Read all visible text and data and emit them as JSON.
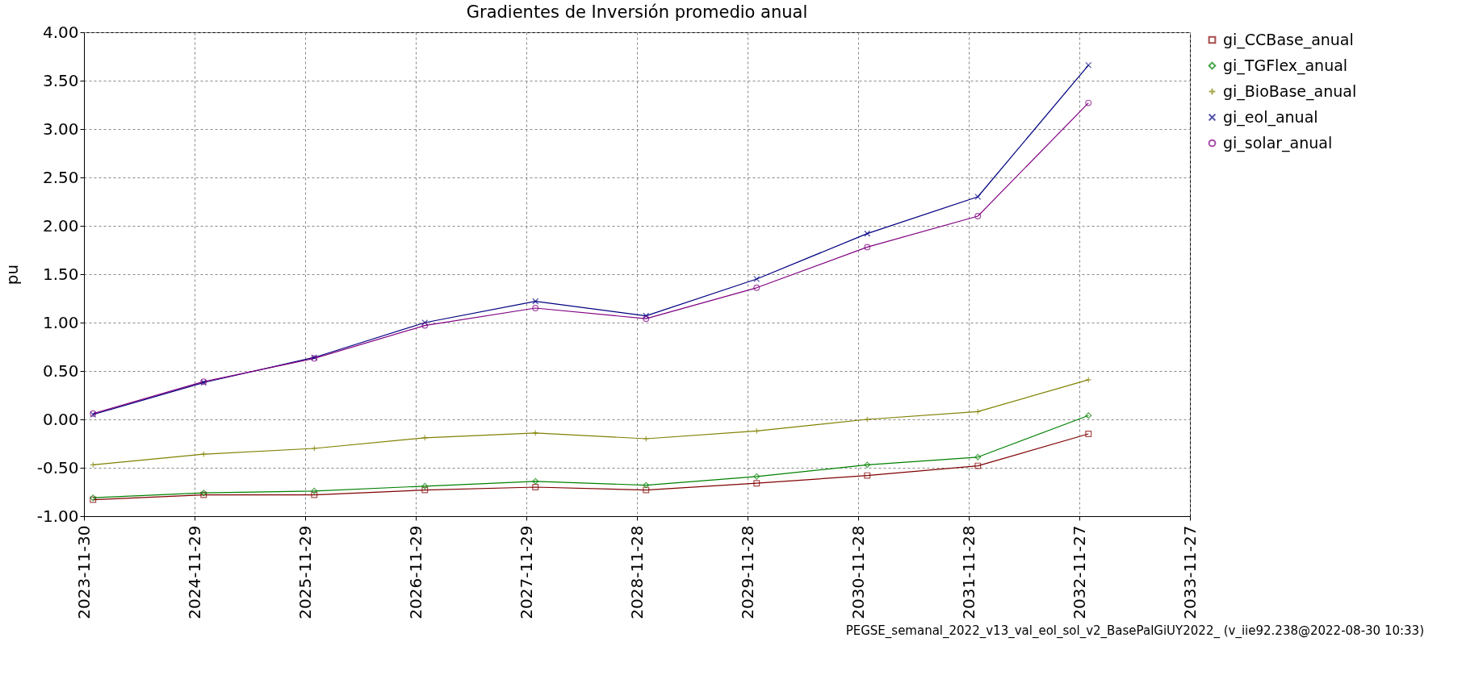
{
  "chart_data": {
    "type": "line",
    "title": "Gradientes de Inversión promedio anual",
    "ylabel": "pu",
    "x": [
      "2023-12-30",
      "2024-12-29",
      "2025-12-29",
      "2026-12-29",
      "2027-12-29",
      "2028-12-28",
      "2029-12-28",
      "2030-12-28",
      "2031-12-28",
      "2032-12-27"
    ],
    "xlim": [
      "2023-11-30",
      "2033-11-27"
    ],
    "xticks": [
      {
        "value": "2023-11-30",
        "label": "2023-11-30"
      },
      {
        "value": "2024-11-29",
        "label": "2024-11-29"
      },
      {
        "value": "2025-11-29",
        "label": "2025-11-29"
      },
      {
        "value": "2026-11-29",
        "label": "2026-11-29"
      },
      {
        "value": "2027-11-29",
        "label": "2027-11-29"
      },
      {
        "value": "2028-11-28",
        "label": "2028-11-28"
      },
      {
        "value": "2029-11-28",
        "label": "2029-11-28"
      },
      {
        "value": "2030-11-28",
        "label": "2030-11-28"
      },
      {
        "value": "2031-11-28",
        "label": "2031-11-28"
      },
      {
        "value": "2032-11-27",
        "label": "2032-11-27"
      },
      {
        "value": "2033-11-27",
        "label": "2033-11-27"
      }
    ],
    "ylim": [
      -1,
      4
    ],
    "yticks": [
      {
        "value": -1,
        "label": "-1.00"
      },
      {
        "value": -0.5,
        "label": "-0.50"
      },
      {
        "value": 0,
        "label": "0.00"
      },
      {
        "value": 0.5,
        "label": "0.50"
      },
      {
        "value": 1,
        "label": "1.00"
      },
      {
        "value": 1.5,
        "label": "1.50"
      },
      {
        "value": 2,
        "label": "2.00"
      },
      {
        "value": 2.5,
        "label": "2.50"
      },
      {
        "value": 3,
        "label": "3.00"
      },
      {
        "value": 3.5,
        "label": "3.50"
      },
      {
        "value": 4,
        "label": "4.00"
      }
    ],
    "grid": true,
    "legend": "right",
    "line_style": "solid",
    "series": [
      {
        "name": "gi_CCBase_anual",
        "color": "#800000",
        "marker": "square",
        "values": [
          -0.83,
          -0.78,
          -0.78,
          -0.73,
          -0.7,
          -0.73,
          -0.66,
          -0.58,
          -0.48,
          -0.15
        ]
      },
      {
        "name": "gi_TGFlex_anual",
        "color": "#008000",
        "marker": "diamond",
        "values": [
          -0.81,
          -0.76,
          -0.74,
          -0.69,
          -0.64,
          -0.68,
          -0.59,
          -0.47,
          -0.39,
          0.04
        ]
      },
      {
        "name": "gi_BioBase_anual",
        "color": "#808000",
        "marker": "cross",
        "values": [
          -0.47,
          -0.36,
          -0.3,
          -0.19,
          -0.14,
          -0.2,
          -0.12,
          0.0,
          0.08,
          0.41
        ]
      },
      {
        "name": "gi_eol_anual",
        "color": "#000080",
        "marker": "x",
        "values": [
          0.05,
          0.38,
          0.64,
          1.0,
          1.22,
          1.07,
          1.45,
          1.92,
          2.3,
          3.66
        ]
      },
      {
        "name": "gi_solar_anual",
        "color": "#800080",
        "marker": "circle",
        "values": [
          0.06,
          0.39,
          0.63,
          0.97,
          1.15,
          1.04,
          1.36,
          1.78,
          2.1,
          3.27
        ]
      }
    ],
    "annotations": [
      "PEGSE_semanal_2022_v13_val_eol_sol_v2_BasePalGiUY2022_ (v_iie92.238@2022-08-30 10:33)"
    ]
  }
}
